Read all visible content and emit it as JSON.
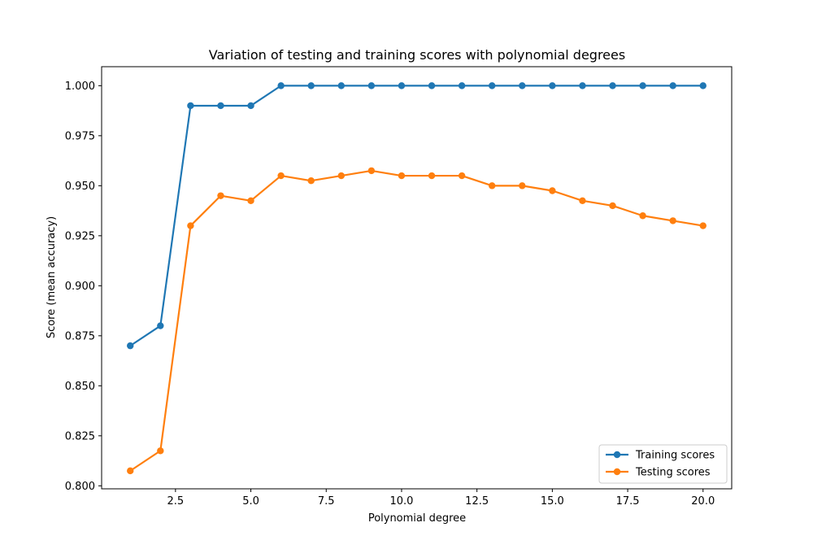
{
  "chart_data": {
    "type": "line",
    "title": "Variation of testing and training scores with polynomial degrees",
    "xlabel": "Polynomial degree",
    "ylabel": "Score (mean accuracy)",
    "xlim": [
      0.05,
      20.95
    ],
    "ylim": [
      0.7985,
      1.0095
    ],
    "x": [
      1,
      2,
      3,
      4,
      5,
      6,
      7,
      8,
      9,
      10,
      11,
      12,
      13,
      14,
      15,
      16,
      17,
      18,
      19,
      20
    ],
    "xticks": [
      2.5,
      5.0,
      7.5,
      10.0,
      12.5,
      15.0,
      17.5,
      20.0
    ],
    "xtick_labels": [
      "2.5",
      "5.0",
      "7.5",
      "10.0",
      "12.5",
      "15.0",
      "17.5",
      "20.0"
    ],
    "yticks": [
      0.8,
      0.825,
      0.85,
      0.875,
      0.9,
      0.925,
      0.95,
      0.975,
      1.0
    ],
    "ytick_labels": [
      "0.800",
      "0.825",
      "0.850",
      "0.875",
      "0.900",
      "0.925",
      "0.950",
      "0.975",
      "1.000"
    ],
    "grid": false,
    "legend_position": "lower-right",
    "series": [
      {
        "name": "Training scores",
        "color": "#1f77b4",
        "marker": "circle",
        "values": [
          0.87,
          0.88,
          0.99,
          0.99,
          0.99,
          1.0,
          1.0,
          1.0,
          1.0,
          1.0,
          1.0,
          1.0,
          1.0,
          1.0,
          1.0,
          1.0,
          1.0,
          1.0,
          1.0,
          1.0
        ]
      },
      {
        "name": "Testing scores",
        "color": "#ff7f0e",
        "marker": "circle",
        "values": [
          0.8075,
          0.8175,
          0.93,
          0.945,
          0.9425,
          0.955,
          0.9525,
          0.955,
          0.9575,
          0.955,
          0.955,
          0.955,
          0.95,
          0.95,
          0.9475,
          0.9425,
          0.94,
          0.935,
          0.9325,
          0.93
        ]
      }
    ]
  }
}
